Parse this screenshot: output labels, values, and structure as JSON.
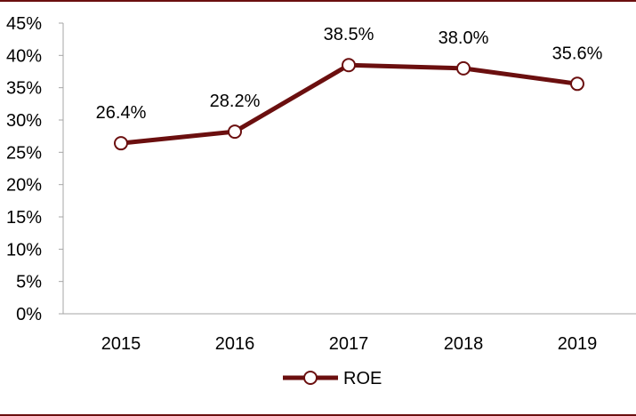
{
  "colors": {
    "series": "#6B0F0F",
    "axis": "#A6A6A6",
    "frame": "#6B0F0F",
    "text": "#000000",
    "marker_fill": "#FFFFFF"
  },
  "chart_data": {
    "type": "line",
    "title": "",
    "xlabel": "",
    "ylabel": "",
    "categories": [
      "2015",
      "2016",
      "2017",
      "2018",
      "2019"
    ],
    "series": [
      {
        "name": "ROE",
        "values": [
          26.4,
          28.2,
          38.5,
          38.0,
          35.6
        ],
        "labels": [
          "26.4%",
          "28.2%",
          "38.5%",
          "38.0%",
          "35.6%"
        ]
      }
    ],
    "ylim": [
      0,
      45
    ],
    "yticks": [
      0,
      5,
      10,
      15,
      20,
      25,
      30,
      35,
      40,
      45
    ],
    "ytick_labels": [
      "0%",
      "5%",
      "10%",
      "15%",
      "20%",
      "25%",
      "30%",
      "35%",
      "40%",
      "45%"
    ],
    "grid": false,
    "legend": {
      "position": "bottom-center",
      "label": "ROE"
    }
  }
}
